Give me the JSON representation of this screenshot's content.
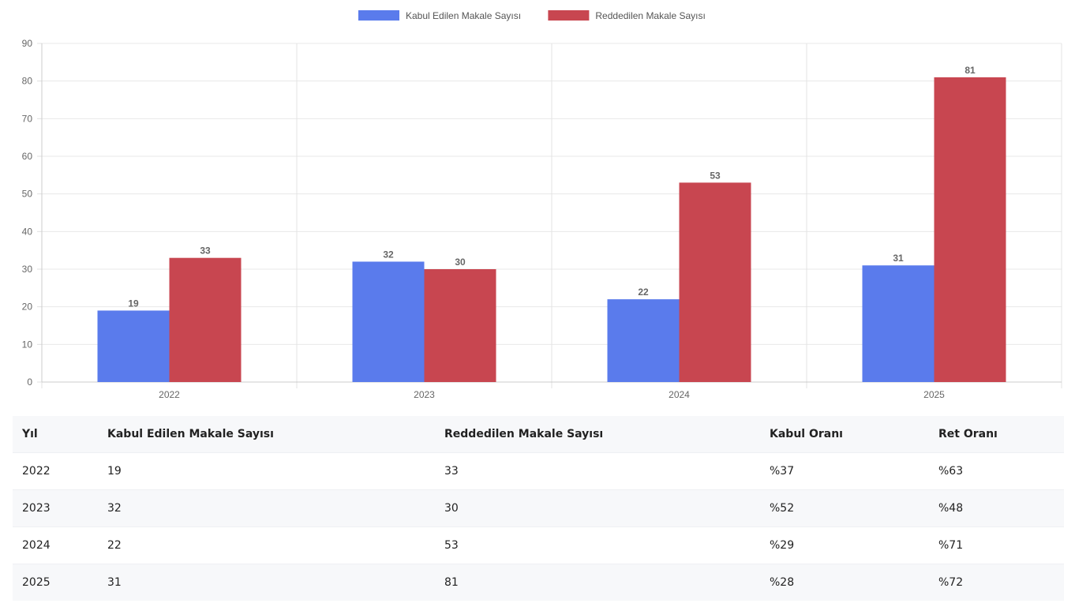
{
  "chart_data": {
    "type": "bar",
    "categories": [
      "2022",
      "2023",
      "2024",
      "2025"
    ],
    "series": [
      {
        "name": "Kabul Edilen Makale Sayısı",
        "values": [
          19,
          32,
          22,
          31
        ],
        "color": "#5a7bec"
      },
      {
        "name": "Reddedilen Makale Sayısı",
        "values": [
          33,
          30,
          53,
          81
        ],
        "color": "#c84650"
      }
    ],
    "ylim": [
      0,
      90
    ],
    "yticks": [
      0,
      10,
      20,
      30,
      40,
      50,
      60,
      70,
      80,
      90
    ],
    "legend": "top-center",
    "grid": true
  },
  "table": {
    "headers": [
      "Yıl",
      "Kabul Edilen Makale Sayısı",
      "Reddedilen Makale Sayısı",
      "Kabul Oranı",
      "Ret Oranı"
    ],
    "rows": [
      [
        "2022",
        "19",
        "33",
        "%37",
        "%63"
      ],
      [
        "2023",
        "32",
        "30",
        "%52",
        "%48"
      ],
      [
        "2024",
        "22",
        "53",
        "%29",
        "%71"
      ],
      [
        "2025",
        "31",
        "81",
        "%28",
        "%72"
      ]
    ]
  }
}
